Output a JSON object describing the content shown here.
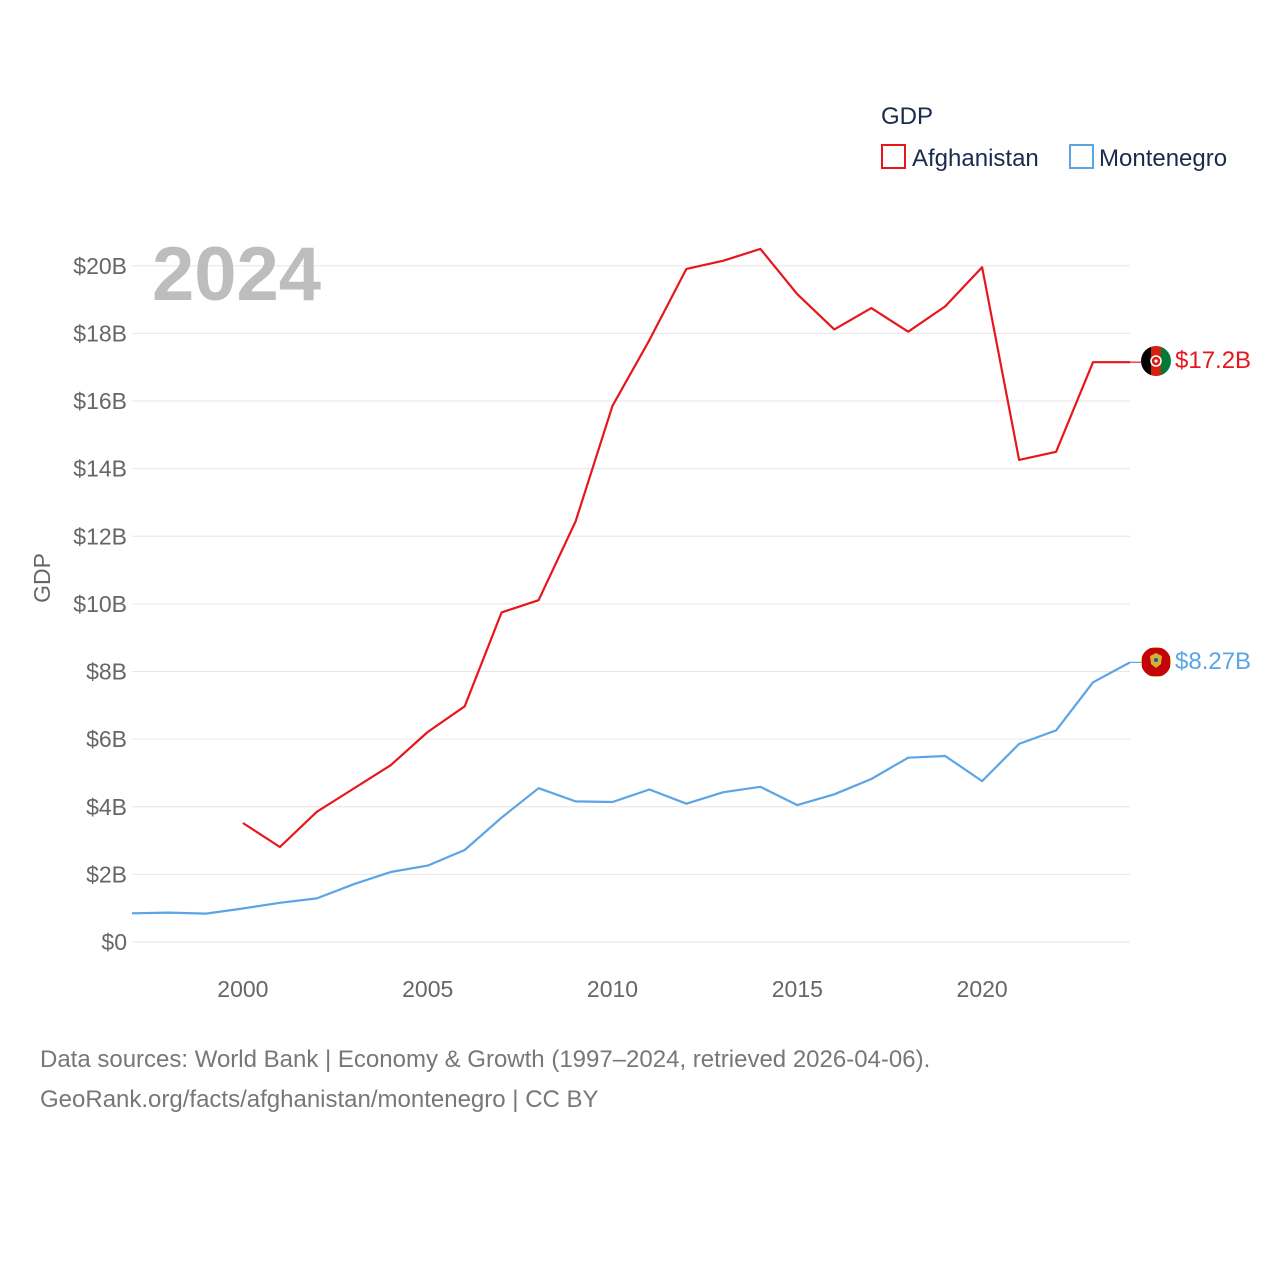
{
  "chart_data": {
    "type": "line",
    "title": "",
    "legend_title": "GDP",
    "ylabel": "GDP",
    "xlabel": "",
    "year_label": "2024",
    "xlim": [
      1997,
      2024
    ],
    "ylim": [
      0,
      21000000000
    ],
    "x_ticks": [
      2000,
      2005,
      2010,
      2015,
      2020
    ],
    "x_tick_labels": [
      "2000",
      "2005",
      "2010",
      "2015",
      "2020"
    ],
    "y_ticks": [
      0,
      2000000000,
      4000000000,
      6000000000,
      8000000000,
      10000000000,
      12000000000,
      14000000000,
      16000000000,
      18000000000,
      20000000000
    ],
    "y_tick_labels": [
      "$0",
      "$2B",
      "$4B",
      "$6B",
      "$8B",
      "$10B",
      "$12B",
      "$14B",
      "$16B",
      "$18B",
      "$20B"
    ],
    "grid": true,
    "legend_position": "top-right",
    "series": [
      {
        "name": "Afghanistan",
        "color": "#e8161b",
        "end_label": "$17.2B",
        "x": [
          2000,
          2001,
          2002,
          2003,
          2004,
          2005,
          2006,
          2007,
          2008,
          2009,
          2010,
          2011,
          2012,
          2013,
          2014,
          2015,
          2016,
          2017,
          2018,
          2019,
          2020,
          2021,
          2022,
          2023,
          2024
        ],
        "values": [
          3520000000,
          2810000000,
          3850000000,
          4540000000,
          5230000000,
          6210000000,
          6970000000,
          9750000000,
          10110000000,
          12440000000,
          15860000000,
          17810000000,
          19910000000,
          20150000000,
          20500000000,
          19160000000,
          18120000000,
          18750000000,
          18050000000,
          18800000000,
          19960000000,
          14260000000,
          14500000000,
          17150000000,
          17150000000
        ]
      },
      {
        "name": "Montenegro",
        "color": "#5ba4e5",
        "end_label": "$8.27B",
        "x": [
          1997,
          1998,
          1999,
          2000,
          2001,
          2002,
          2003,
          2004,
          2005,
          2006,
          2007,
          2008,
          2009,
          2010,
          2011,
          2012,
          2013,
          2014,
          2015,
          2016,
          2017,
          2018,
          2019,
          2020,
          2021,
          2022,
          2023,
          2024
        ],
        "values": [
          850000000,
          870000000,
          840000000,
          990000000,
          1160000000,
          1290000000,
          1710000000,
          2070000000,
          2260000000,
          2720000000,
          3680000000,
          4550000000,
          4160000000,
          4140000000,
          4510000000,
          4090000000,
          4430000000,
          4590000000,
          4050000000,
          4370000000,
          4820000000,
          5450000000,
          5500000000,
          4760000000,
          5860000000,
          6260000000,
          7680000000,
          8270000000
        ]
      }
    ]
  },
  "footer": {
    "line1": "Data sources: World Bank | Economy & Growth (1997–2024, retrieved 2026-04-06).",
    "line2": "GeoRank.org/facts/afghanistan/montenegro | CC BY"
  }
}
